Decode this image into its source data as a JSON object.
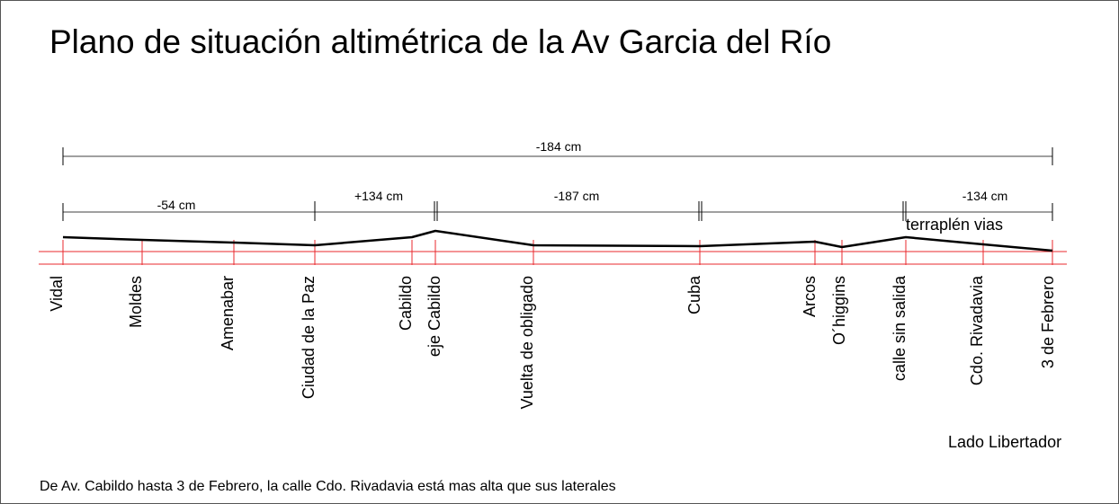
{
  "title": "Plano de situación altimétrica de la Av Garcia del Río",
  "total_dimension": "-184 cm",
  "segments": [
    {
      "label": "-54 cm",
      "from": "Vidal",
      "to": "Ciudad de la Paz"
    },
    {
      "label": "+134 cm",
      "from": "Ciudad de la Paz",
      "to": "eje Cabildo"
    },
    {
      "label": "-187 cm",
      "from": "eje Cabildo",
      "to": "Cuba"
    },
    {
      "label": "",
      "from": "Cuba",
      "to": "calle sin salida"
    },
    {
      "label": "-134 cm",
      "from": "calle sin salida",
      "to": "3 de Febrero"
    }
  ],
  "annotation": "terraplén vias",
  "streets": [
    {
      "name": "Vidal"
    },
    {
      "name": "Moldes"
    },
    {
      "name": "Amenabar"
    },
    {
      "name": "Ciudad de la Paz"
    },
    {
      "name": "Cabildo"
    },
    {
      "name": "eje Cabildo"
    },
    {
      "name": "Vuelta de obligado"
    },
    {
      "name": "Cuba"
    },
    {
      "name": "Arcos"
    },
    {
      "name": "O´higgins"
    },
    {
      "name": "calle sin salida"
    },
    {
      "name": "Cdo. Rivadavia"
    },
    {
      "name": "3 de Febrero"
    }
  ],
  "side_label": "Lado Libertador",
  "footnote": "De Av. Cabildo hasta 3 de Febrero, la calle Cdo. Rivadavia está mas alta que sus laterales",
  "colors": {
    "reference_lines": "#e8282e",
    "profile": "#000000",
    "dimension_lines": "#000000"
  }
}
